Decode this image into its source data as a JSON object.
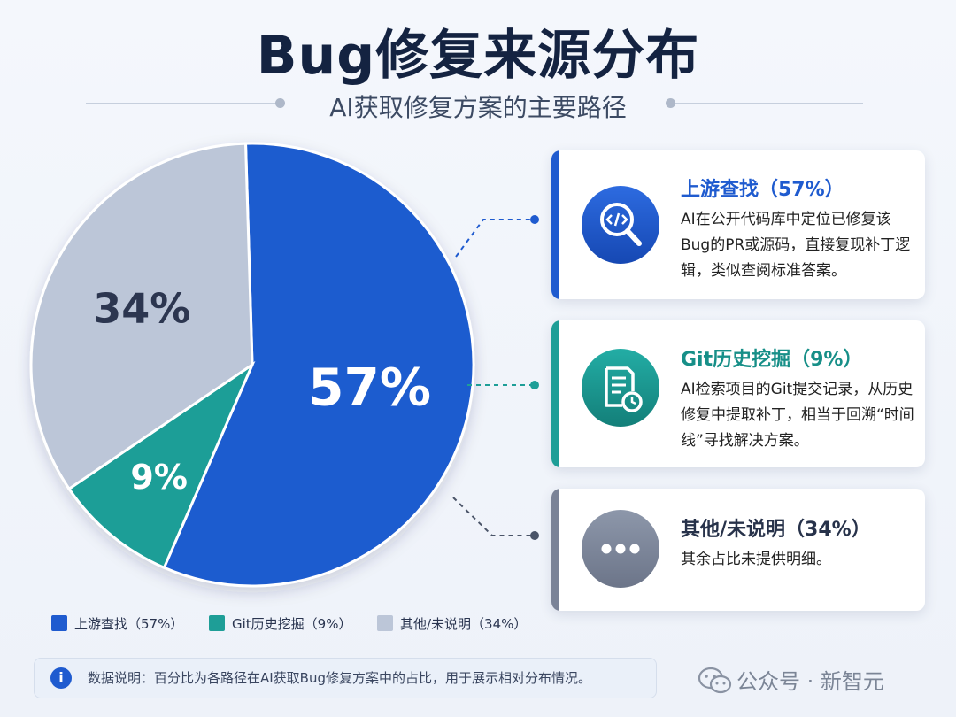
{
  "header": {
    "title": "Bug修复来源分布",
    "subtitle": "AI获取修复方案的主要路径"
  },
  "chart_data": {
    "type": "pie",
    "title": "Bug修复来源分布",
    "subtitle": "AI获取修复方案的主要路径",
    "categories": [
      "上游查找",
      "Git历史挖掘",
      "其他/未说明"
    ],
    "values": [
      57,
      9,
      34
    ],
    "labels": [
      "57%",
      "9%",
      "34%"
    ],
    "colors": [
      "#1f5bcf",
      "#1e9e97",
      "#bcc6d8"
    ],
    "unit": "%",
    "legend_position": "bottom"
  },
  "cards": [
    {
      "title": "上游查找（57%）",
      "desc": "AI在公开代码库中定位已修复该Bug的PR或源码，直接复现补丁逻辑，类似查阅标准答案。",
      "icon": "code-search-icon",
      "color": "#1f5bcf"
    },
    {
      "title": "Git历史挖掘（9%）",
      "desc": "AI检索项目的Git提交记录，从历史修复中提取补丁，相当于回溯“时间线”寻找解决方案。",
      "icon": "history-document-icon",
      "color": "#178f88"
    },
    {
      "title": "其他/未说明（34%）",
      "desc": "其余占比未提供明细。",
      "icon": "more-dots-icon",
      "color": "#27324a"
    }
  ],
  "legend": [
    {
      "label": "上游查找（57%）",
      "color": "#1f5bcf"
    },
    {
      "label": "Git历史挖掘（9%）",
      "color": "#1e9e97"
    },
    {
      "label": "其他/未说明（34%）",
      "color": "#bcc6d8"
    }
  ],
  "note": {
    "icon_glyph": "i",
    "text": "数据说明：百分比为各路径在AI获取Bug修复方案中的占比，用于展示相对分布情况。"
  },
  "watermark": {
    "text": "公众号 · 新智元",
    "icon": "wechat-icon"
  }
}
